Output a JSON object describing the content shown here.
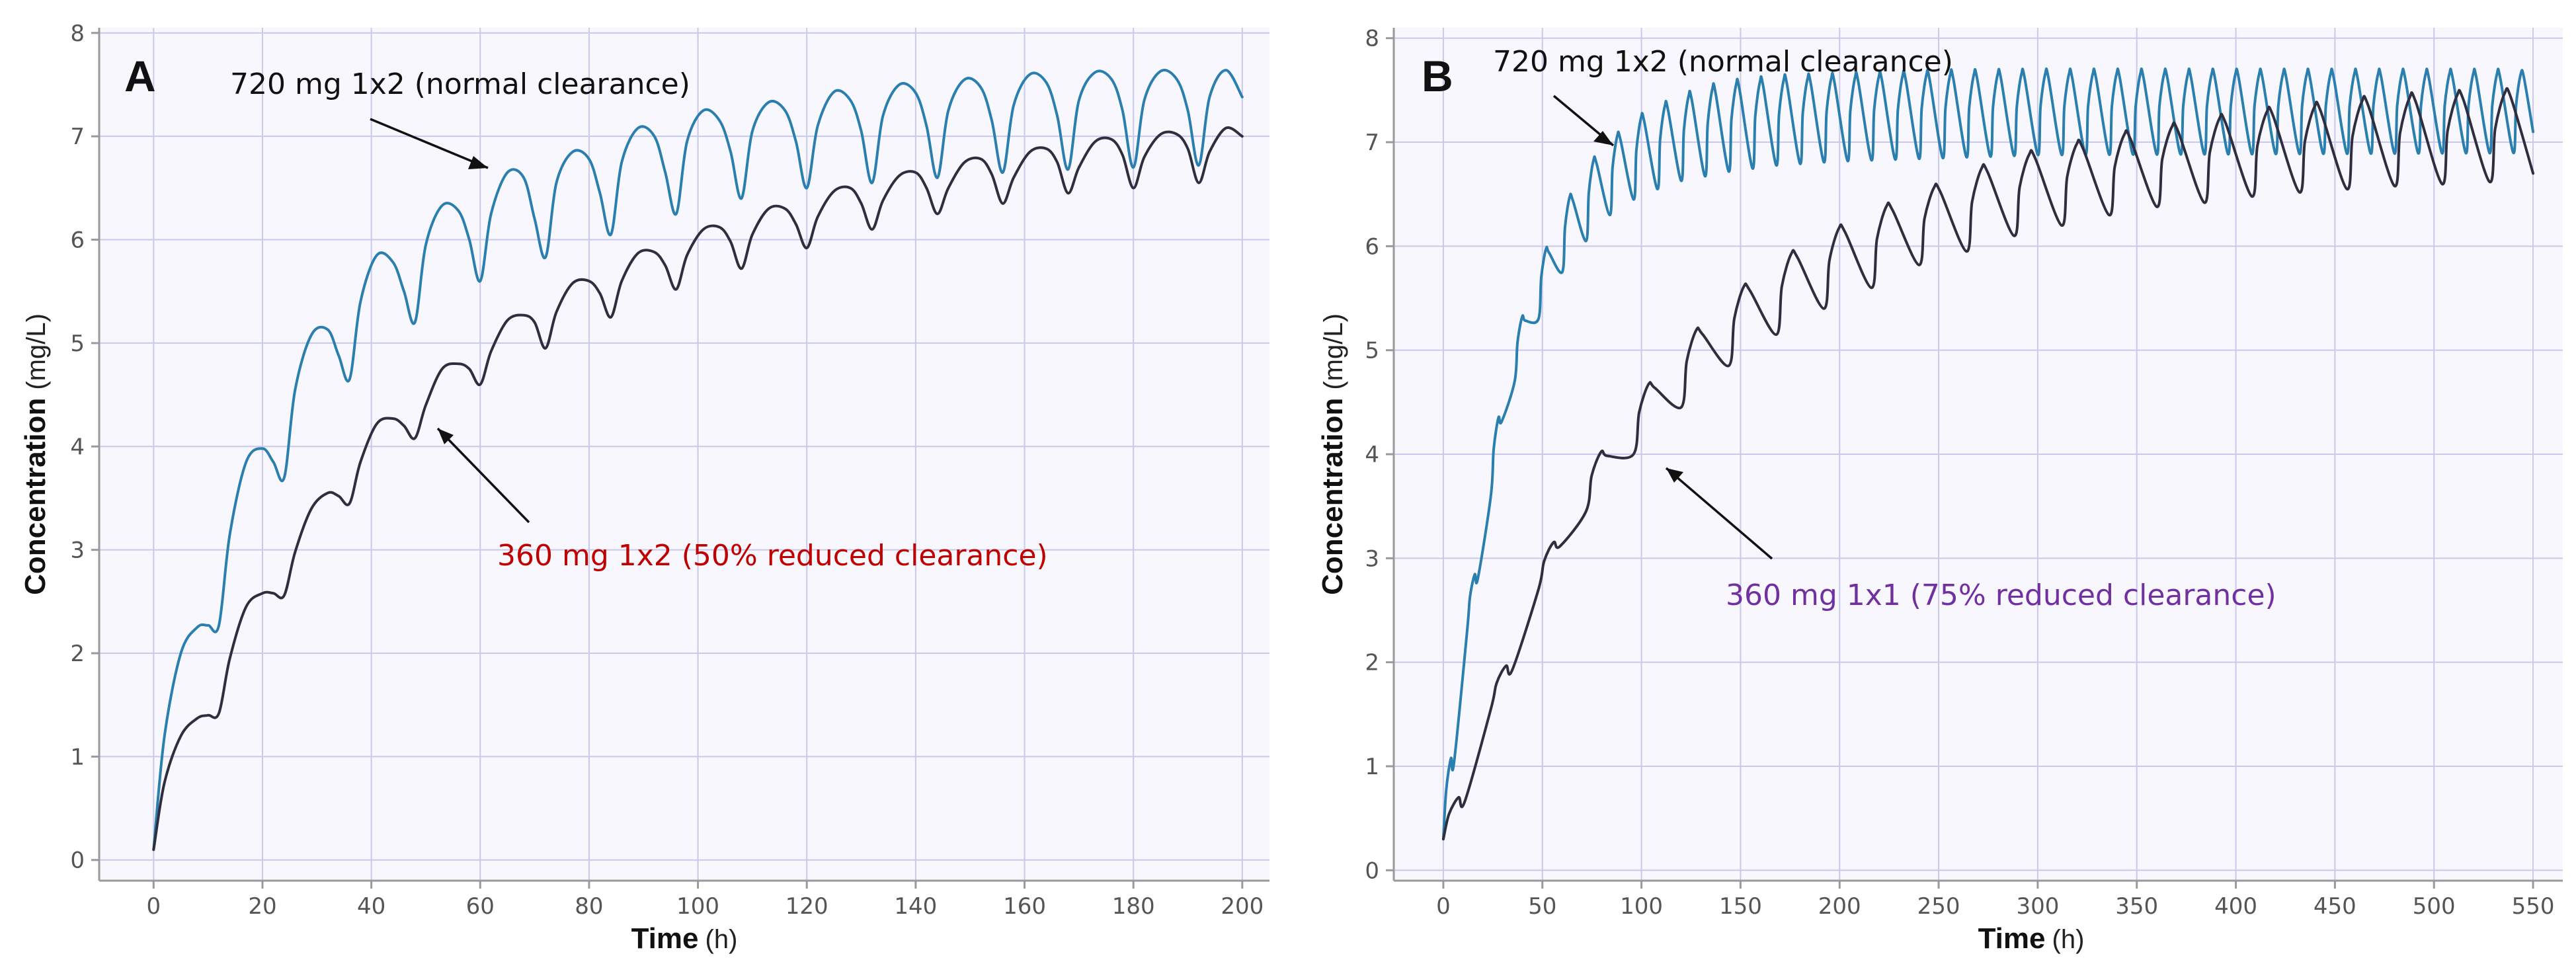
{
  "figure": {
    "colors": {
      "normal_line": "#2b7fae",
      "reduced_line": "#2e2e3e",
      "grid": "#c9c9ec",
      "plot_bg": "#f8f7fd",
      "axis": "#9a9a9a",
      "annot_black": "#111111",
      "annot_red": "#c00000",
      "annot_purple": "#7030a0"
    }
  },
  "chart_data": [
    {
      "type": "line",
      "panel_label": "A",
      "xlabel": "Time",
      "xunit": "(h)",
      "ylabel": "Concentration",
      "yunit": "(mg/L)",
      "xlim": [
        -10,
        205
      ],
      "ylim": [
        -0.2,
        8.05
      ],
      "xticks": [
        0,
        20,
        40,
        60,
        80,
        100,
        120,
        140,
        160,
        180,
        200
      ],
      "yticks": [
        0,
        1,
        2,
        3,
        4,
        5,
        6,
        7,
        8
      ],
      "grid": true,
      "series": [
        {
          "name": "720 mg 1x2 (normal clearance)",
          "color": "#2b7fae",
          "x": [
            0,
            2,
            5,
            8,
            10,
            12,
            14,
            17,
            20,
            22,
            24,
            26,
            29,
            32,
            34,
            36,
            38,
            41,
            44,
            46,
            48,
            50,
            53,
            56,
            58,
            60,
            62,
            65,
            68,
            70,
            72,
            74,
            77,
            80,
            82,
            84,
            86,
            89,
            92,
            94,
            96,
            98,
            101,
            104,
            106,
            108,
            110,
            113,
            116,
            118,
            120,
            122,
            125,
            128,
            130,
            132,
            134,
            137,
            140,
            142,
            144,
            146,
            149,
            152,
            154,
            156,
            158,
            161,
            164,
            166,
            168,
            170,
            173,
            176,
            178,
            180,
            182,
            185,
            188,
            190,
            192,
            194,
            197,
            200
          ],
          "values": [
            0.1,
            1.2,
            2.0,
            2.25,
            2.27,
            2.27,
            3.15,
            3.85,
            3.98,
            3.85,
            3.7,
            4.55,
            5.08,
            5.13,
            4.88,
            4.65,
            5.4,
            5.85,
            5.78,
            5.5,
            5.2,
            5.95,
            6.33,
            6.28,
            6.0,
            5.6,
            6.25,
            6.65,
            6.6,
            6.2,
            5.83,
            6.55,
            6.85,
            6.78,
            6.45,
            6.05,
            6.75,
            7.08,
            7.0,
            6.65,
            6.25,
            6.95,
            7.25,
            7.15,
            6.85,
            6.4,
            7.05,
            7.33,
            7.25,
            6.95,
            6.5,
            7.1,
            7.43,
            7.35,
            7.05,
            6.55,
            7.2,
            7.5,
            7.42,
            7.1,
            6.6,
            7.25,
            7.55,
            7.47,
            7.15,
            6.65,
            7.3,
            7.6,
            7.52,
            7.2,
            6.68,
            7.35,
            7.62,
            7.55,
            7.25,
            6.7,
            7.35,
            7.63,
            7.55,
            7.25,
            6.72,
            7.38,
            7.64,
            7.38
          ]
        },
        {
          "name": "360 mg 1x2 (50% reduced clearance)",
          "color": "#2e2e3e",
          "x": [
            0,
            2,
            5,
            8,
            10,
            12,
            14,
            17,
            20,
            22,
            24,
            26,
            29,
            32,
            34,
            36,
            38,
            41,
            44,
            46,
            48,
            50,
            53,
            56,
            58,
            60,
            62,
            65,
            68,
            70,
            72,
            74,
            77,
            80,
            82,
            84,
            86,
            89,
            92,
            94,
            96,
            98,
            101,
            104,
            106,
            108,
            110,
            113,
            116,
            118,
            120,
            122,
            125,
            128,
            130,
            132,
            134,
            137,
            140,
            142,
            144,
            146,
            149,
            152,
            154,
            156,
            158,
            161,
            164,
            166,
            168,
            170,
            173,
            176,
            178,
            180,
            182,
            185,
            188,
            190,
            192,
            194,
            197,
            200
          ],
          "values": [
            0.1,
            0.75,
            1.2,
            1.37,
            1.4,
            1.42,
            1.95,
            2.45,
            2.58,
            2.58,
            2.56,
            2.98,
            3.4,
            3.55,
            3.52,
            3.45,
            3.85,
            4.22,
            4.27,
            4.2,
            4.08,
            4.4,
            4.75,
            4.8,
            4.75,
            4.6,
            4.92,
            5.22,
            5.27,
            5.2,
            4.95,
            5.3,
            5.58,
            5.6,
            5.48,
            5.25,
            5.6,
            5.87,
            5.88,
            5.75,
            5.52,
            5.85,
            6.1,
            6.12,
            5.98,
            5.72,
            6.05,
            6.3,
            6.3,
            6.15,
            5.92,
            6.22,
            6.47,
            6.5,
            6.35,
            6.1,
            6.38,
            6.62,
            6.65,
            6.5,
            6.25,
            6.5,
            6.75,
            6.78,
            6.63,
            6.35,
            6.6,
            6.85,
            6.88,
            6.75,
            6.45,
            6.7,
            6.95,
            6.97,
            6.82,
            6.5,
            6.8,
            7.02,
            7.02,
            6.88,
            6.55,
            6.85,
            7.08,
            7.0
          ]
        }
      ],
      "annotations": [
        {
          "text": "720 mg 1x2 (normal clearance)",
          "color": "#111111"
        },
        {
          "text": "360 mg 1x2 (50% reduced clearance)",
          "color": "#c00000"
        }
      ]
    },
    {
      "type": "line",
      "panel_label": "B",
      "xlabel": "Time",
      "xunit": "(h)",
      "ylabel": "Concentration",
      "yunit": "(mg/L)",
      "xlim": [
        -25,
        565
      ],
      "ylim": [
        -0.1,
        8.1
      ],
      "xticks": [
        0,
        50,
        100,
        150,
        200,
        250,
        300,
        350,
        400,
        450,
        500,
        550
      ],
      "yticks": [
        0,
        1,
        2,
        3,
        4,
        5,
        6,
        7,
        8
      ],
      "grid": true,
      "series": [
        {
          "name": "720 mg 1x2 (normal clearance)",
          "color": "#2b7fae",
          "envelope": {
            "peaks": [
              [
                0,
                0.5
              ],
              [
                12,
                2.3
              ],
              [
                24,
                4.0
              ],
              [
                36,
                5.1
              ],
              [
                48,
                5.8
              ],
              [
                60,
                6.35
              ],
              [
                72,
                6.75
              ],
              [
                84,
                7.0
              ],
              [
                96,
                7.2
              ],
              [
                108,
                7.32
              ],
              [
                120,
                7.42
              ],
              [
                132,
                7.5
              ],
              [
                144,
                7.55
              ],
              [
                168,
                7.6
              ],
              [
                200,
                7.62
              ],
              [
                250,
                7.65
              ],
              [
                300,
                7.66
              ],
              [
                550,
                7.66
              ]
            ],
            "troughs": [
              [
                0,
                0.3
              ],
              [
                12,
                2.3
              ],
              [
                24,
                3.6
              ],
              [
                36,
                4.7
              ],
              [
                48,
                5.3
              ],
              [
                60,
                5.75
              ],
              [
                72,
                6.05
              ],
              [
                84,
                6.3
              ],
              [
                96,
                6.45
              ],
              [
                108,
                6.55
              ],
              [
                120,
                6.63
              ],
              [
                144,
                6.72
              ],
              [
                168,
                6.78
              ],
              [
                200,
                6.82
              ],
              [
                250,
                6.85
              ],
              [
                300,
                6.88
              ],
              [
                550,
                6.9
              ]
            ],
            "dosing_interval_h": 12,
            "x_end": 550,
            "end_value": 7.1
          }
        },
        {
          "name": "360 mg 1x1 (75% reduced clearance)",
          "color": "#2e2e3e",
          "envelope": {
            "peaks": [
              [
                0,
                0.3
              ],
              [
                24,
                1.55
              ],
              [
                48,
                2.85
              ],
              [
                72,
                3.8
              ],
              [
                96,
                4.5
              ],
              [
                120,
                5.05
              ],
              [
                144,
                5.5
              ],
              [
                168,
                5.85
              ],
              [
                192,
                6.1
              ],
              [
                216,
                6.33
              ],
              [
                240,
                6.5
              ],
              [
                264,
                6.7
              ],
              [
                288,
                6.85
              ],
              [
                312,
                6.95
              ],
              [
                336,
                7.05
              ],
              [
                360,
                7.12
              ],
              [
                384,
                7.2
              ],
              [
                408,
                7.28
              ],
              [
                432,
                7.32
              ],
              [
                456,
                7.38
              ],
              [
                480,
                7.42
              ],
              [
                504,
                7.44
              ],
              [
                528,
                7.47
              ],
              [
                550,
                7.47
              ]
            ],
            "troughs": [
              [
                0,
                0.3
              ],
              [
                24,
                1.55
              ],
              [
                48,
                2.7
              ],
              [
                72,
                3.45
              ],
              [
                96,
                4.0
              ],
              [
                120,
                4.45
              ],
              [
                144,
                4.85
              ],
              [
                168,
                5.15
              ],
              [
                192,
                5.4
              ],
              [
                216,
                5.6
              ],
              [
                240,
                5.82
              ],
              [
                264,
                5.95
              ],
              [
                288,
                6.1
              ],
              [
                312,
                6.2
              ],
              [
                336,
                6.3
              ],
              [
                360,
                6.38
              ],
              [
                384,
                6.42
              ],
              [
                408,
                6.48
              ],
              [
                432,
                6.52
              ],
              [
                456,
                6.55
              ],
              [
                480,
                6.58
              ],
              [
                504,
                6.6
              ],
              [
                528,
                6.62
              ],
              [
                550,
                6.65
              ]
            ],
            "dosing_interval_h": 24,
            "x_end": 550,
            "end_value": 6.7
          }
        }
      ],
      "annotations": [
        {
          "text": "720 mg 1x2 (normal clearance)",
          "color": "#111111"
        },
        {
          "text": "360 mg 1x1 (75% reduced clearance)",
          "color": "#7030a0"
        }
      ]
    }
  ]
}
